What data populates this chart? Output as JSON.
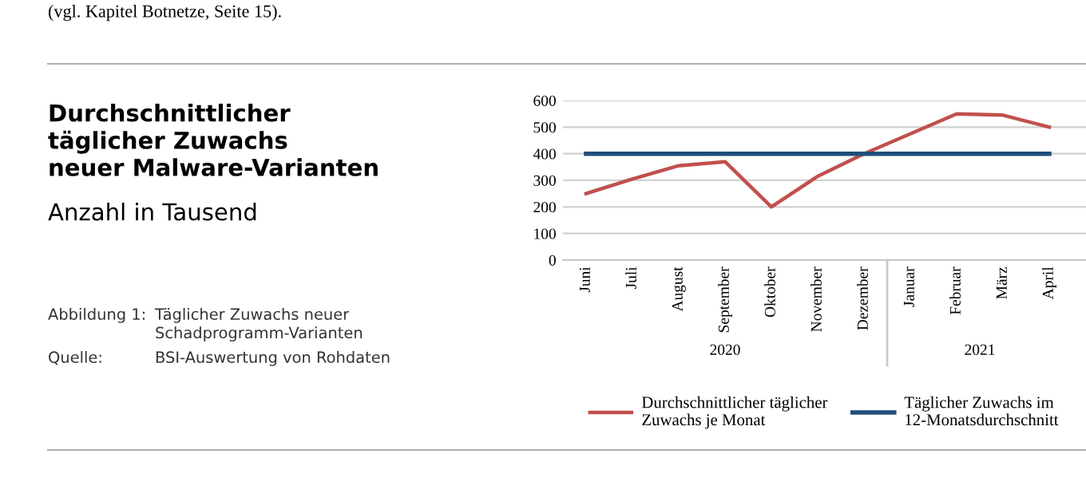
{
  "chart_data": {
    "type": "line",
    "title": "Durchschnittlicher\ntäglicher Zuwachs\nneuer Malware-Varianten",
    "subtitle": "Anzahl in Tausend",
    "categories": [
      "Juni",
      "Juli",
      "August",
      "September",
      "Oktober",
      "November",
      "Dezember",
      "Januar",
      "Februar",
      "März",
      "April"
    ],
    "series": [
      {
        "name": "Durchschnittlicher täglicher\nZuwachs je Monat",
        "color": "#c0504d",
        "values": [
          250,
          305,
          355,
          370,
          200,
          315,
          400,
          475,
          550,
          545,
          500
        ]
      },
      {
        "name": "Täglicher Zuwachs im\n12-Monatsdurchschnitt",
        "color": "#1f4e79",
        "values": [
          400,
          400,
          400,
          400,
          400,
          400,
          400,
          400,
          400,
          400,
          400
        ]
      }
    ],
    "ylim": [
      0,
      600
    ],
    "yticks": [
      0,
      100,
      200,
      300,
      400,
      500,
      600
    ],
    "grid": "y",
    "legend": "bottom",
    "annotations": [
      "(vgl. Kapitel Botnetze, Seite 15).",
      "2020",
      "2021",
      "Abbildung 1:",
      "Täglicher Zuwachs neuer\nSchadprogramm-Varianten",
      "Quelle:",
      "BSI-Auswertung von Rohdaten"
    ]
  }
}
